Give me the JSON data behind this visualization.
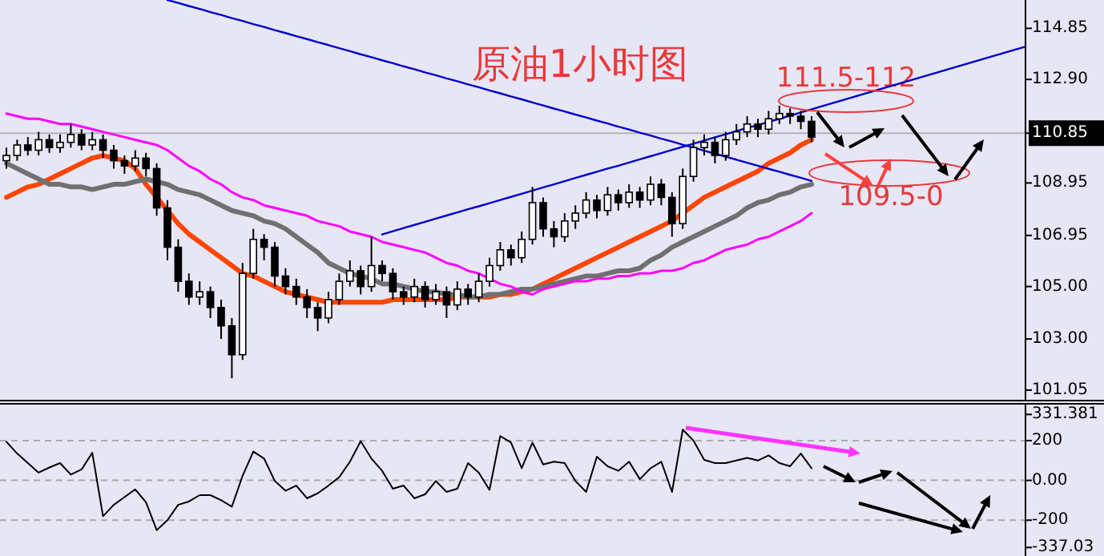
{
  "chart_data": [
    {
      "type": "candlestick",
      "title": "原油1小时图",
      "categories": [
        null,
        null,
        null,
        null,
        null,
        null,
        null,
        null,
        null,
        null,
        null,
        null,
        null,
        null,
        null,
        null,
        null,
        null,
        null,
        null,
        null,
        null,
        null,
        null,
        null,
        null,
        null,
        null,
        null,
        null,
        null,
        null,
        null,
        null,
        null,
        null,
        null,
        null,
        null,
        null,
        null,
        null,
        null,
        null,
        null,
        null,
        null,
        null,
        null,
        null,
        null,
        null,
        null,
        null,
        null,
        null,
        null,
        null,
        null,
        null,
        null,
        null,
        null,
        null,
        null,
        null,
        null,
        null,
        null,
        null,
        null,
        null,
        null,
        null,
        null,
        null
      ],
      "ohlc": [
        [
          109.8,
          110.3,
          109.5,
          110.0
        ],
        [
          110.0,
          110.6,
          109.8,
          110.4
        ],
        [
          110.4,
          110.7,
          110.0,
          110.2
        ],
        [
          110.2,
          110.9,
          110.0,
          110.6
        ],
        [
          110.6,
          110.8,
          110.1,
          110.3
        ],
        [
          110.3,
          110.8,
          110.1,
          110.5
        ],
        [
          110.5,
          111.2,
          110.3,
          110.8
        ],
        [
          110.8,
          111.0,
          110.2,
          110.4
        ],
        [
          110.4,
          110.9,
          110.2,
          110.6
        ],
        [
          110.6,
          110.8,
          109.9,
          110.2
        ],
        [
          110.2,
          110.4,
          109.5,
          109.8
        ],
        [
          109.8,
          110.0,
          109.3,
          109.6
        ],
        [
          109.6,
          110.2,
          109.4,
          109.9
        ],
        [
          109.9,
          110.1,
          109.2,
          109.5
        ],
        [
          109.5,
          109.7,
          107.7,
          108.0
        ],
        [
          108.0,
          108.3,
          106.0,
          106.5
        ],
        [
          106.5,
          106.8,
          104.8,
          105.2
        ],
        [
          105.2,
          105.5,
          104.3,
          104.6
        ],
        [
          104.6,
          105.2,
          104.3,
          104.8
        ],
        [
          104.8,
          105.0,
          103.8,
          104.2
        ],
        [
          104.2,
          104.5,
          103.0,
          103.5
        ],
        [
          103.5,
          103.8,
          101.5,
          102.4
        ],
        [
          102.4,
          105.9,
          102.2,
          105.5
        ],
        [
          105.5,
          107.2,
          105.3,
          106.8
        ],
        [
          106.8,
          107.0,
          106.0,
          106.5
        ],
        [
          106.5,
          106.7,
          105.0,
          105.4
        ],
        [
          105.4,
          105.7,
          104.7,
          105.0
        ],
        [
          105.0,
          105.3,
          104.3,
          104.6
        ],
        [
          104.6,
          104.9,
          103.8,
          104.2
        ],
        [
          104.2,
          104.4,
          103.3,
          103.8
        ],
        [
          103.8,
          104.8,
          103.6,
          104.5
        ],
        [
          104.5,
          105.5,
          104.3,
          105.2
        ],
        [
          105.2,
          106.0,
          105.0,
          105.6
        ],
        [
          105.6,
          105.8,
          104.7,
          105.0
        ],
        [
          105.0,
          106.9,
          104.8,
          105.8
        ],
        [
          105.8,
          106.0,
          105.2,
          105.5
        ],
        [
          105.5,
          105.7,
          104.5,
          104.8
        ],
        [
          104.8,
          105.0,
          104.3,
          104.6
        ],
        [
          104.6,
          105.3,
          104.4,
          105.0
        ],
        [
          105.0,
          105.2,
          104.2,
          104.5
        ],
        [
          104.5,
          105.1,
          104.3,
          104.8
        ],
        [
          104.8,
          105.0,
          103.8,
          104.3
        ],
        [
          104.3,
          105.2,
          104.1,
          104.9
        ],
        [
          104.9,
          105.1,
          104.3,
          104.6
        ],
        [
          104.6,
          105.5,
          104.4,
          105.2
        ],
        [
          105.2,
          106.1,
          105.0,
          105.8
        ],
        [
          105.8,
          106.7,
          105.6,
          106.4
        ],
        [
          106.4,
          106.6,
          105.8,
          106.1
        ],
        [
          106.1,
          107.1,
          105.9,
          106.8
        ],
        [
          106.8,
          108.8,
          106.6,
          108.2
        ],
        [
          108.2,
          108.4,
          106.9,
          107.2
        ],
        [
          107.2,
          107.5,
          106.5,
          106.9
        ],
        [
          106.9,
          107.8,
          106.7,
          107.5
        ],
        [
          107.5,
          108.1,
          107.2,
          107.8
        ],
        [
          107.8,
          108.6,
          107.6,
          108.3
        ],
        [
          108.3,
          108.5,
          107.6,
          107.9
        ],
        [
          107.9,
          108.8,
          107.7,
          108.5
        ],
        [
          108.5,
          108.7,
          107.9,
          108.2
        ],
        [
          108.2,
          108.9,
          108.0,
          108.6
        ],
        [
          108.6,
          108.8,
          108.0,
          108.3
        ],
        [
          108.3,
          109.2,
          108.1,
          108.9
        ],
        [
          108.9,
          109.1,
          108.1,
          108.4
        ],
        [
          108.4,
          108.6,
          106.9,
          107.4
        ],
        [
          107.4,
          109.5,
          107.2,
          109.2
        ],
        [
          109.2,
          110.6,
          109.0,
          110.3
        ],
        [
          110.3,
          110.8,
          110.0,
          110.5
        ],
        [
          110.5,
          110.7,
          109.7,
          110.0
        ],
        [
          110.0,
          110.9,
          109.8,
          110.6
        ],
        [
          110.6,
          111.2,
          110.4,
          110.9
        ],
        [
          110.9,
          111.5,
          110.7,
          111.2
        ],
        [
          111.2,
          111.4,
          110.7,
          111.0
        ],
        [
          111.0,
          111.7,
          110.8,
          111.4
        ],
        [
          111.4,
          111.9,
          111.2,
          111.6
        ],
        [
          111.6,
          111.8,
          111.2,
          111.5
        ],
        [
          111.5,
          111.7,
          111.0,
          111.3
        ],
        [
          111.3,
          111.5,
          110.5,
          110.7
        ]
      ],
      "series": [
        {
          "type": "line",
          "color": "#ff4500",
          "values": [
            108.4,
            108.6,
            108.8,
            108.9,
            109.1,
            109.3,
            109.5,
            109.7,
            109.9,
            110.0,
            109.9,
            109.8,
            109.5,
            108.9,
            108.4,
            107.9,
            107.4,
            107.0,
            106.7,
            106.4,
            106.1,
            105.8,
            105.5,
            105.4,
            105.2,
            105.0,
            104.8,
            104.7,
            104.6,
            104.5,
            104.4,
            104.4,
            104.4,
            104.4,
            104.4,
            104.4,
            104.5,
            104.5,
            104.5,
            104.5,
            104.5,
            104.5,
            104.6,
            104.6,
            104.6,
            104.6,
            104.7,
            104.7,
            104.8,
            104.9,
            105.1,
            105.3,
            105.5,
            105.7,
            105.9,
            106.1,
            106.3,
            106.5,
            106.7,
            106.9,
            107.1,
            107.3,
            107.5,
            107.8,
            108.1,
            108.4,
            108.6,
            108.8,
            109.0,
            109.2,
            109.4,
            109.7,
            109.9,
            110.1,
            110.4,
            110.6
          ]
        },
        {
          "type": "line",
          "color": "#707070",
          "values": [
            109.7,
            109.5,
            109.3,
            109.1,
            108.9,
            108.9,
            108.8,
            108.8,
            108.7,
            108.8,
            108.9,
            108.9,
            109.0,
            109.1,
            109.0,
            108.9,
            108.7,
            108.6,
            108.5,
            108.3,
            108.1,
            107.9,
            107.8,
            107.7,
            107.5,
            107.4,
            107.2,
            106.9,
            106.6,
            106.3,
            105.9,
            105.7,
            105.5,
            105.4,
            105.3,
            105.1,
            105.1,
            105.0,
            104.9,
            104.8,
            104.8,
            104.7,
            104.7,
            104.6,
            104.6,
            104.7,
            104.7,
            104.8,
            104.9,
            104.9,
            105.0,
            105.1,
            105.2,
            105.3,
            105.4,
            105.4,
            105.5,
            105.6,
            105.6,
            105.7,
            106.0,
            106.2,
            106.5,
            106.7,
            106.9,
            107.1,
            107.3,
            107.5,
            107.7,
            108.0,
            108.2,
            108.3,
            108.5,
            108.6,
            108.8,
            108.9
          ]
        },
        {
          "type": "line",
          "color": "#ff00ff",
          "values": [
            111.6,
            111.5,
            111.4,
            111.4,
            111.3,
            111.2,
            111.2,
            111.1,
            111.0,
            110.9,
            110.8,
            110.7,
            110.6,
            110.5,
            110.4,
            110.2,
            109.9,
            109.6,
            109.4,
            109.1,
            108.9,
            108.6,
            108.4,
            108.3,
            108.1,
            108.0,
            107.9,
            107.8,
            107.7,
            107.5,
            107.4,
            107.3,
            107.1,
            107.0,
            106.9,
            106.7,
            106.6,
            106.5,
            106.4,
            106.3,
            106.1,
            105.9,
            105.8,
            105.6,
            105.5,
            105.3,
            105.1,
            105.0,
            104.8,
            104.7,
            104.9,
            105.0,
            105.1,
            105.2,
            105.2,
            105.3,
            105.3,
            105.4,
            105.4,
            105.5,
            105.5,
            105.6,
            105.6,
            105.7,
            105.9,
            106.0,
            106.2,
            106.4,
            106.5,
            106.6,
            106.8,
            106.9,
            107.1,
            107.3,
            107.5,
            107.8
          ]
        },
        {
          "type": "line",
          "color": "#0000cd",
          "values": [
            null,
            null,
            null,
            null,
            null,
            null,
            null,
            null,
            null,
            null,
            null,
            null,
            null,
            null,
            null,
            115.93,
            115.82,
            115.7,
            115.59,
            115.47,
            115.36,
            115.24,
            115.13,
            115.01,
            114.9,
            114.78,
            114.67,
            114.55,
            114.44,
            114.32,
            114.21,
            114.09,
            113.98,
            113.86,
            113.75,
            113.63,
            113.52,
            113.4,
            113.29,
            113.17,
            113.06,
            112.94,
            112.83,
            112.71,
            112.6,
            112.48,
            112.37,
            112.25,
            112.14,
            112.02,
            111.91,
            111.79,
            111.68,
            111.56,
            111.45,
            111.33,
            111.22,
            111.1,
            110.99,
            110.87,
            110.76,
            110.64,
            110.53,
            110.41,
            110.3,
            110.18,
            110.07,
            109.95,
            109.84,
            109.72,
            109.61,
            109.49,
            109.38,
            109.26,
            109.15,
            109.03
          ]
        },
        {
          "type": "line",
          "color": "#0000cd",
          "values": [
            null,
            null,
            null,
            null,
            null,
            null,
            null,
            null,
            null,
            null,
            null,
            null,
            null,
            null,
            null,
            null,
            null,
            null,
            null,
            null,
            null,
            null,
            null,
            null,
            null,
            null,
            null,
            null,
            null,
            null,
            null,
            null,
            null,
            null,
            null,
            106.99,
            107.11,
            107.23,
            107.35,
            107.47,
            107.59,
            107.71,
            107.83,
            107.95,
            108.06,
            108.18,
            108.3,
            108.42,
            108.54,
            108.66,
            108.78,
            108.9,
            109.02,
            109.14,
            109.26,
            109.38,
            109.5,
            109.61,
            109.73,
            109.85,
            109.97,
            110.09,
            110.21,
            110.33,
            110.45,
            110.57,
            110.69,
            110.81,
            110.93,
            111.05,
            111.16,
            111.28,
            111.4,
            111.52,
            111.64,
            111.76
          ]
        }
      ],
      "ylim": [
        100.65,
        115.93
      ],
      "yticks": [
        114.85,
        {
          "value": 112.9,
          "label": "112.90"
        },
        110.85,
        108.95,
        106.95,
        {
          "value": 105,
          "label": "105.00"
        },
        {
          "value": 103,
          "label": "103.00"
        },
        101.05
      ],
      "tick_labels": "y",
      "ref_lines": [
        {
          "axis": "y",
          "value": 110.85,
          "color": "#b4b4b4"
        }
      ],
      "annotations": [
        "111.5-112",
        "109.5-0"
      ]
    },
    {
      "type": "line",
      "color": "#000000",
      "categories": [
        null,
        null,
        null,
        null,
        null,
        null,
        null,
        null,
        null,
        null,
        null,
        null,
        null,
        null,
        null,
        null,
        null,
        null,
        null,
        null,
        null,
        null,
        null,
        null,
        null,
        null,
        null,
        null,
        null,
        null,
        null,
        null,
        null,
        null,
        null,
        null,
        null,
        null,
        null,
        null,
        null,
        null,
        null,
        null,
        null,
        null,
        null,
        null,
        null,
        null,
        null,
        null,
        null,
        null,
        null,
        null,
        null,
        null,
        null,
        null,
        null,
        null,
        null,
        null,
        null,
        null,
        null,
        null,
        null,
        null,
        null,
        null,
        null,
        null,
        null,
        null
      ],
      "values": [
        194,
        135,
        87,
        39,
        65,
        87,
        29,
        55,
        139,
        -180,
        -123,
        -84,
        -45,
        -110,
        -250,
        -200,
        -123,
        -106,
        -74,
        -74,
        -100,
        -132,
        23,
        145,
        110,
        -3,
        -52,
        -26,
        -90,
        -65,
        -26,
        16,
        94,
        197,
        110,
        48,
        -42,
        -26,
        -90,
        -70,
        -3,
        -58,
        -42,
        87,
        39,
        -48,
        223,
        190,
        61,
        190,
        80,
        94,
        87,
        -3,
        -58,
        119,
        71,
        48,
        94,
        6,
        61,
        94,
        -58,
        255,
        200,
        103,
        87,
        87,
        100,
        113,
        100,
        126,
        87,
        71,
        135,
        61
      ],
      "ylim": [
        -380,
        385
      ],
      "yticks": [
        {
          "value": 331.381,
          "label": "331.381"
        },
        200,
        {
          "value": 0,
          "label": "0.00"
        },
        -200,
        {
          "value": -337.03,
          "label": "-337.03"
        }
      ],
      "tick_labels": "y",
      "ref_lines": [
        {
          "axis": "y",
          "value": 200,
          "color": "#aaaaaa",
          "line_style": "dashed"
        },
        {
          "axis": "y",
          "value": 0,
          "color": "#aaaaaa",
          "line_style": "dashed"
        },
        {
          "axis": "y",
          "value": -200,
          "color": "#aaaaaa",
          "line_style": "dashed"
        }
      ]
    }
  ]
}
